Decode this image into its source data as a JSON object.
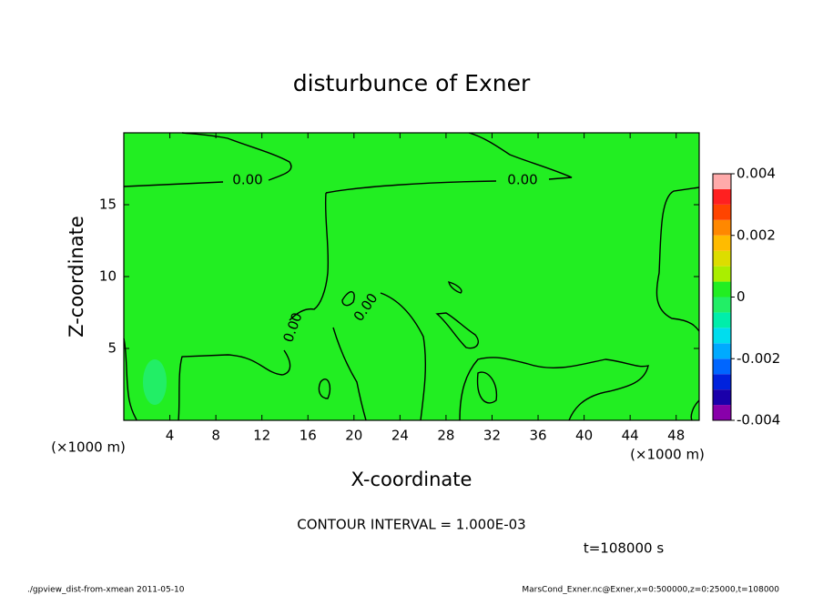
{
  "chart_data": {
    "type": "contour",
    "title": "disturbunce of Exner",
    "xlabel": "X-coordinate",
    "ylabel": "Z-coordinate",
    "x_unit": "(×1000 m)",
    "xlim": [
      0,
      50
    ],
    "ylim": [
      0,
      20
    ],
    "xticks": [
      4,
      8,
      12,
      16,
      20,
      24,
      28,
      32,
      36,
      40,
      44,
      48
    ],
    "yticks": [
      5,
      10,
      15
    ],
    "contour_levels": [
      {
        "value": 0,
        "label": "0.00"
      }
    ],
    "colorbar": {
      "clim": [
        -0.004,
        0.004
      ],
      "ticks": [
        0.004,
        0.002,
        0,
        -0.002,
        -0.004
      ],
      "colors": [
        "#8800aa",
        "#1a00aa",
        "#0022dd",
        "#0066ff",
        "#00aaff",
        "#00ddee",
        "#00eeaa",
        "#22ee66",
        "#22ee22",
        "#aaee00",
        "#dddd00",
        "#ffbb00",
        "#ff8800",
        "#ff4400",
        "#ff2020",
        "#ffaaaa"
      ]
    },
    "field_colors": {
      "positive": "#22ee22",
      "negative": "#22ee66"
    },
    "contour_interval": "CONTOUR INTERVAL = 1.000E-03",
    "time": "t=108000 s",
    "footer_left": "./gpview_dist-from-xmean  2011-05-10",
    "footer_right": "MarsCond_Exner.nc@Exner,x=0:500000,z=0:25000,t=108000"
  }
}
